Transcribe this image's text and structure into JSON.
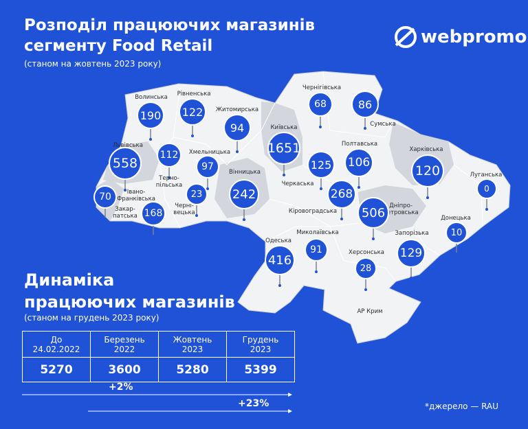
{
  "header": {
    "title_lines": [
      "Розподіл працюючих магазинів",
      "сегменту Food Retail"
    ],
    "subtitle": "(станом на жовтень 2023 року)"
  },
  "logo": "webpromo",
  "regions": [
    {
      "name": "Волинська",
      "count": 190
    },
    {
      "name": "Рівненська",
      "count": 122
    },
    {
      "name": "Житомирська",
      "count": 94
    },
    {
      "name": "Київська",
      "count": 1651
    },
    {
      "name": "Чернігівська",
      "count": 68
    },
    {
      "name": "Сумська",
      "count": 86
    },
    {
      "name": "Львівська",
      "count": 558
    },
    {
      "name": "Терно-\nпільська",
      "count": 112
    },
    {
      "name": "Хмельницька",
      "count": 97
    },
    {
      "name": "Полтавська",
      "count": 106
    },
    {
      "name": "Харківська",
      "count": 120
    },
    {
      "name": "Черкаська",
      "count": 125
    },
    {
      "name": "Луганська",
      "count": 0
    },
    {
      "name": "Вінницька",
      "count": 242
    },
    {
      "name": "Івано-\nФранківська",
      "count": 168
    },
    {
      "name": "Закар-\nпатська",
      "count": 70
    },
    {
      "name": "Черні-\nвецька",
      "count": 23
    },
    {
      "name": "Кіровоградська",
      "count": 268
    },
    {
      "name": "Дніпро-\nпетровська",
      "count": 506
    },
    {
      "name": "Донецька",
      "count": 10
    },
    {
      "name": "Одеська",
      "count": 416
    },
    {
      "name": "Миколаївська",
      "count": 91
    },
    {
      "name": "Запорізька",
      "count": 129
    },
    {
      "name": "Херсонська",
      "count": 28
    },
    {
      "name": "АР Крим"
    }
  ],
  "dynamics": {
    "title_lines": [
      "Динаміка",
      "працюючих магазинів"
    ],
    "subtitle": "(станом на грудень 2023 року)",
    "table": {
      "headers": [
        "До\n24.02.2022",
        "Березень\n2022",
        "Жовтень\n2023",
        "Грудень\n2023"
      ],
      "values": [
        5270,
        3600,
        5280,
        5399
      ]
    },
    "changes": [
      "+2%",
      "+23%"
    ]
  },
  "source": "*джерело — RAU"
}
